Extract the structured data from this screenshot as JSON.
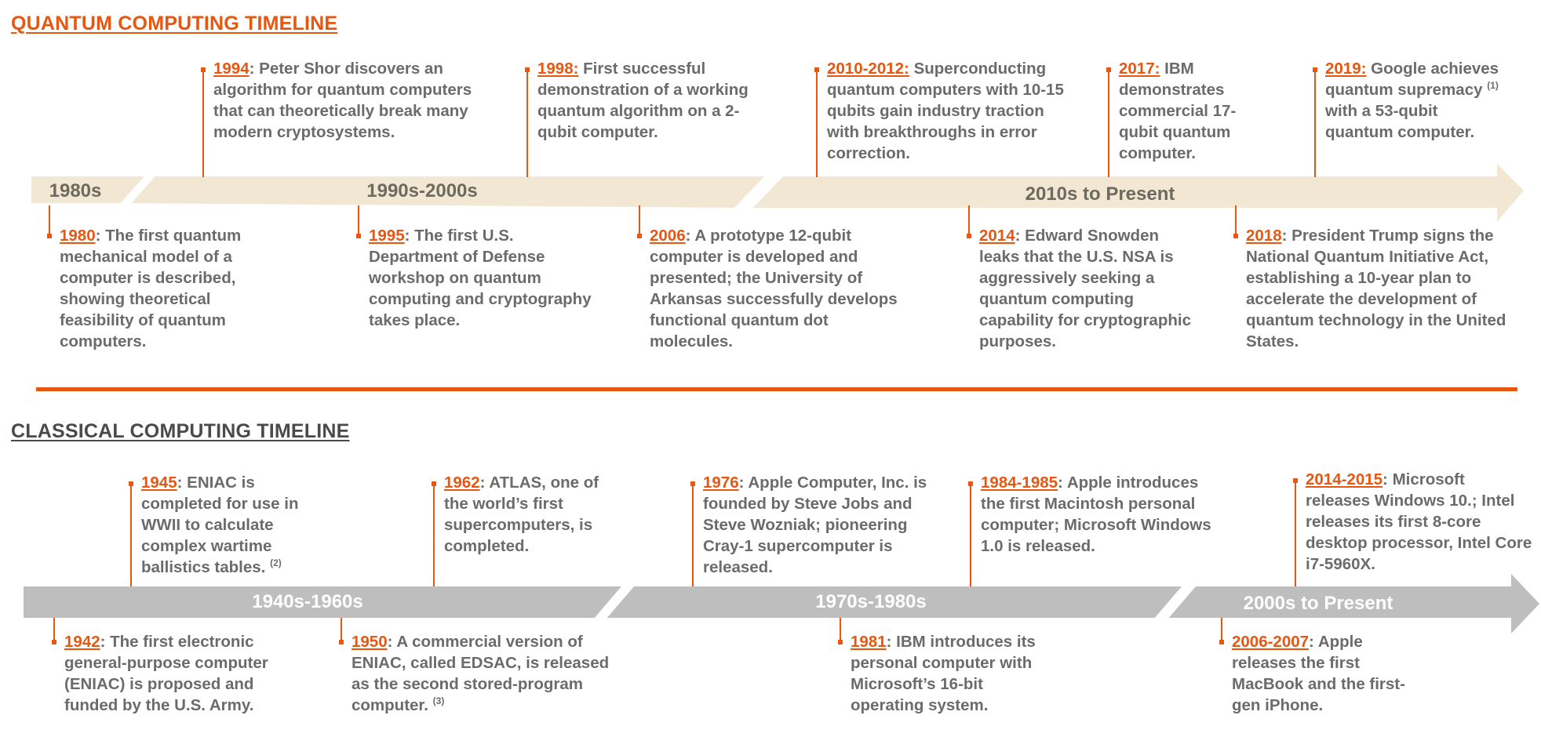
{
  "quantum": {
    "title": "QUANTUM COMPUTING TIMELINE",
    "eras": [
      "1980s",
      "1990s-2000s",
      "2010s to Present"
    ],
    "events": [
      {
        "year": "1994",
        "sep": ": ",
        "text": "Peter Shor discovers an algorithm for quantum computers that can theoretically break many modern cryptosystems.",
        "note": ""
      },
      {
        "year": "1998:",
        "sep": " ",
        "text": "First successful demonstration of a working quantum algorithm on a 2-qubit computer.",
        "note": ""
      },
      {
        "year": "2010-2012:",
        "sep": " ",
        "text": "Superconducting quantum computers with 10-15 qubits gain industry traction with breakthroughs in error correction.",
        "note": ""
      },
      {
        "year": "2017:",
        "sep": " ",
        "text": "IBM demonstrates commercial 17-qubit quantum computer.",
        "note": ""
      },
      {
        "year": "2019:",
        "sep": " ",
        "text": "Google achieves quantum supremacy",
        "note": "(1)",
        "text_after": " with a 53-qubit quantum computer."
      },
      {
        "year": "1980",
        "sep": ": ",
        "text": "The first quantum mechanical model of a computer is described, showing theoretical feasibility of quantum computers.",
        "note": ""
      },
      {
        "year": "1995",
        "sep": ": ",
        "text": "The first U.S. Department of Defense workshop on quantum computing and cryptography takes place.",
        "note": ""
      },
      {
        "year": "2006",
        "sep": ": ",
        "text": "A prototype 12-qubit computer is developed and presented; the University of Arkansas successfully develops functional quantum dot molecules.",
        "note": ""
      },
      {
        "year": "2014",
        "sep": ": ",
        "text": "Edward Snowden leaks that the U.S. NSA is aggressively seeking a quantum computing capability for cryptographic purposes.",
        "note": ""
      },
      {
        "year": "2018",
        "sep": ": ",
        "text": "President Trump signs the National Quantum Initiative Act, establishing a 10-year plan to accelerate the development of quantum technology in the United States.",
        "note": ""
      }
    ]
  },
  "classical": {
    "title": "CLASSICAL COMPUTING TIMELINE",
    "eras": [
      "1940s-1960s",
      "1970s-1980s",
      "2000s to Present"
    ],
    "events": [
      {
        "year": "1945",
        "sep": ": ",
        "text": "ENIAC is completed for use in WWII to calculate complex wartime ballistics tables.",
        "note": "(2)"
      },
      {
        "year": "1962",
        "sep": ": ",
        "text": "ATLAS, one of the world’s first supercomputers, is completed.",
        "note": ""
      },
      {
        "year": "1976",
        "sep": ": ",
        "text": "Apple Computer, Inc. is founded by Steve Jobs and Steve Wozniak; pioneering Cray-1 supercomputer is released.",
        "note": ""
      },
      {
        "year": "1984-1985",
        "sep": ": ",
        "text": "Apple introduces the first Macintosh personal computer; Microsoft Windows 1.0 is released.",
        "note": ""
      },
      {
        "year": "2014-2015",
        "sep": ": ",
        "text": "Microsoft releases Windows 10.; Intel releases its first 8-core desktop processor, Intel Core i7-5960X.",
        "note": ""
      },
      {
        "year": "1942",
        "sep": ": ",
        "text": "The first electronic general-purpose computer (ENIAC) is proposed and funded by the U.S. Army.",
        "note": ""
      },
      {
        "year": "1950",
        "sep": ": ",
        "text": "A commercial version of ENIAC, called EDSAC, is released as the second stored-program computer.",
        "note": "(3)"
      },
      {
        "year": "1981",
        "sep": ": ",
        "text": "IBM introduces its personal computer with Microsoft’s 16-bit operating system.",
        "note": ""
      },
      {
        "year": "2006-2007",
        "sep": ": ",
        "text": "Apple releases the first MacBook and the first-gen iPhone.",
        "note": ""
      }
    ]
  },
  "colors": {
    "accent": "#E8560F",
    "quantum_band": "#F1E7D3",
    "classical_band": "#BEBEBE",
    "body_text": "#6b6b6b"
  }
}
